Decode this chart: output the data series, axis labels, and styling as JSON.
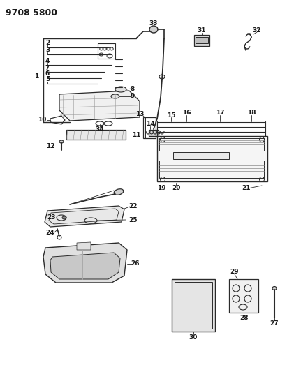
{
  "title": "9708 5800",
  "bg_color": "#ffffff",
  "line_color": "#2a2a2a",
  "text_color": "#1a1a1a",
  "fig_width": 4.11,
  "fig_height": 5.33,
  "dpi": 100
}
